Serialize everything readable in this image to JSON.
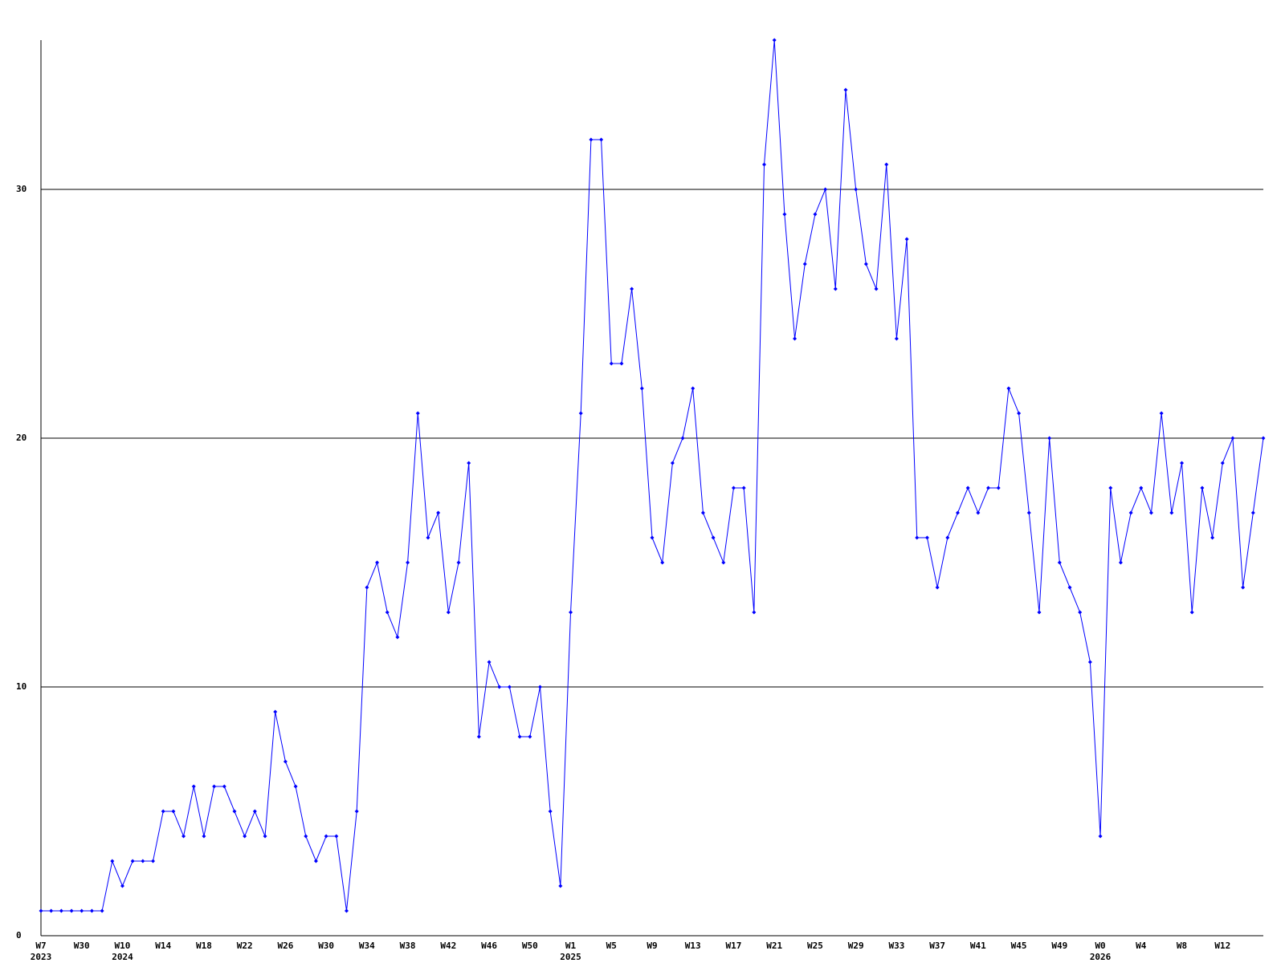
{
  "chart_data": {
    "type": "line",
    "categories": [
      "W7",
      null,
      null,
      null,
      "W30",
      null,
      null,
      null,
      "W10",
      null,
      null,
      null,
      "W14",
      null,
      null,
      null,
      "W18",
      null,
      null,
      null,
      "W22",
      null,
      null,
      null,
      "W26",
      null,
      null,
      null,
      "W30",
      null,
      null,
      null,
      "W34",
      null,
      null,
      null,
      "W38",
      null,
      null,
      null,
      "W42",
      null,
      null,
      null,
      "W46",
      null,
      null,
      null,
      "W50",
      null,
      null,
      null,
      "W1",
      null,
      null,
      null,
      "W5",
      null,
      null,
      null,
      "W9",
      null,
      null,
      null,
      "W13",
      null,
      null,
      null,
      "W17",
      null,
      null,
      null,
      "W21",
      null,
      null,
      null,
      "W25",
      null,
      null,
      null,
      "W29",
      null,
      null,
      null,
      "W33",
      null,
      null,
      null,
      "W37",
      null,
      null,
      null,
      "W41",
      null,
      null,
      null,
      "W45",
      null,
      null,
      null,
      "W49",
      null,
      null,
      null,
      "W0",
      null,
      null,
      null,
      "W4",
      null,
      null,
      null,
      "W8",
      null,
      null,
      null,
      "W12",
      null,
      null,
      null,
      null
    ],
    "category_years": [
      "2023",
      null,
      null,
      null,
      null,
      null,
      null,
      null,
      "2024",
      null,
      null,
      null,
      null,
      null,
      null,
      null,
      null,
      null,
      null,
      null,
      null,
      null,
      null,
      null,
      null,
      null,
      null,
      null,
      null,
      null,
      null,
      null,
      null,
      null,
      null,
      null,
      null,
      null,
      null,
      null,
      null,
      null,
      null,
      null,
      null,
      null,
      null,
      null,
      null,
      null,
      null,
      null,
      "2025",
      null,
      null,
      null,
      null,
      null,
      null,
      null,
      null,
      null,
      null,
      null,
      null,
      null,
      null,
      null,
      null,
      null,
      null,
      null,
      null,
      null,
      null,
      null,
      null,
      null,
      null,
      null,
      null,
      null,
      null,
      null,
      null,
      null,
      null,
      null,
      null,
      null,
      null,
      null,
      null,
      null,
      null,
      null,
      null,
      null,
      null,
      null,
      null,
      null,
      null,
      null,
      "2026",
      null,
      null,
      null,
      null,
      null,
      null,
      null,
      null,
      null,
      null,
      null,
      null,
      null,
      null,
      null,
      null
    ],
    "values": [
      1,
      1,
      1,
      1,
      1,
      1,
      1,
      3,
      2,
      3,
      3,
      3,
      5,
      5,
      4,
      6,
      4,
      6,
      6,
      5,
      4,
      5,
      4,
      9,
      7,
      6,
      4,
      3,
      4,
      4,
      1,
      5,
      14,
      15,
      13,
      12,
      15,
      21,
      16,
      17,
      13,
      15,
      19,
      8,
      11,
      10,
      10,
      8,
      8,
      10,
      5,
      2,
      13,
      21,
      32,
      32,
      23,
      23,
      26,
      22,
      16,
      15,
      19,
      20,
      22,
      17,
      16,
      15,
      18,
      18,
      13,
      31,
      36,
      29,
      24,
      27,
      29,
      30,
      26,
      34,
      30,
      27,
      26,
      31,
      24,
      28,
      16,
      16,
      14,
      16,
      17,
      18,
      17,
      18,
      18,
      22,
      21,
      17,
      13,
      20,
      15,
      14,
      13,
      11,
      4,
      18,
      15,
      17,
      18,
      17,
      21,
      17,
      19,
      13,
      18,
      16,
      19,
      20,
      14,
      17,
      20
    ],
    "color": "#0000ff",
    "ylim": [
      0,
      36
    ],
    "yticks": [
      0,
      10,
      20,
      30
    ],
    "grid": true
  }
}
